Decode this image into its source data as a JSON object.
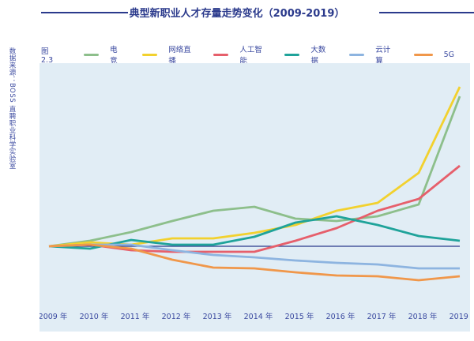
{
  "title": "典型新职业人才存量走势变化（2009-2019）",
  "source": "数据来源：BOSS 直聘职业科学实验室",
  "figure_label": "图 2.3",
  "chart_data": {
    "type": "line",
    "title": "典型新职业人才存量走势变化（2009-2019）",
    "categories": [
      "2009 年",
      "2010 年",
      "2011 年",
      "2012 年",
      "2013 年",
      "2014 年",
      "2015 年",
      "2016 年",
      "2017 年",
      "2018 年",
      "2019 年"
    ],
    "baseline": 0,
    "grid": false,
    "legend": "top",
    "series": [
      {
        "name": "电竞",
        "color": "#8dbf8b",
        "values": [
          0,
          7,
          18,
          32,
          45,
          50,
          35,
          32,
          38,
          53,
          190
        ]
      },
      {
        "name": "网络直播",
        "color": "#f2d12e",
        "values": [
          0,
          5,
          2,
          10,
          10,
          17,
          27,
          45,
          55,
          93,
          202
        ]
      },
      {
        "name": "人工智能",
        "color": "#e65f6b",
        "values": [
          0,
          2,
          -5,
          -7,
          -7,
          -7,
          7,
          23,
          45,
          60,
          102
        ]
      },
      {
        "name": "大数据",
        "color": "#1fa39a",
        "values": [
          0,
          -3,
          8,
          2,
          2,
          12,
          30,
          38,
          27,
          13,
          7
        ]
      },
      {
        "name": "云计算",
        "color": "#8db4e0",
        "values": [
          0,
          2,
          2,
          -5,
          -11,
          -14,
          -18,
          -21,
          -23,
          -28,
          -28
        ]
      },
      {
        "name": "5G",
        "color": "#f0974a",
        "values": [
          0,
          2,
          -3,
          -17,
          -27,
          -28,
          -33,
          -37,
          -38,
          -43,
          -38
        ]
      }
    ]
  }
}
